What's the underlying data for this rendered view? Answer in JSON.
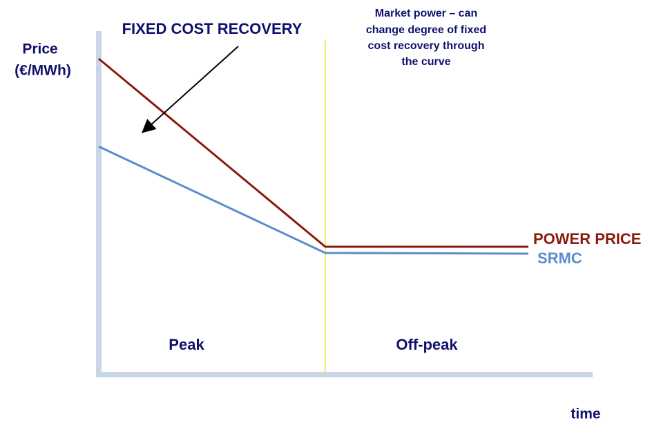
{
  "title": "FIXED COST RECOVERY",
  "y_axis_label": [
    "Price",
    "(€/MWh)"
  ],
  "x_axis_label": "time",
  "annotation": [
    "Market power – can",
    "change degree of fixed",
    "cost recovery through",
    "the curve"
  ],
  "series": [
    {
      "name": "POWER PRICE"
    },
    {
      "name": "SRMC"
    }
  ],
  "regions": [
    "Peak",
    "Off-peak"
  ]
}
